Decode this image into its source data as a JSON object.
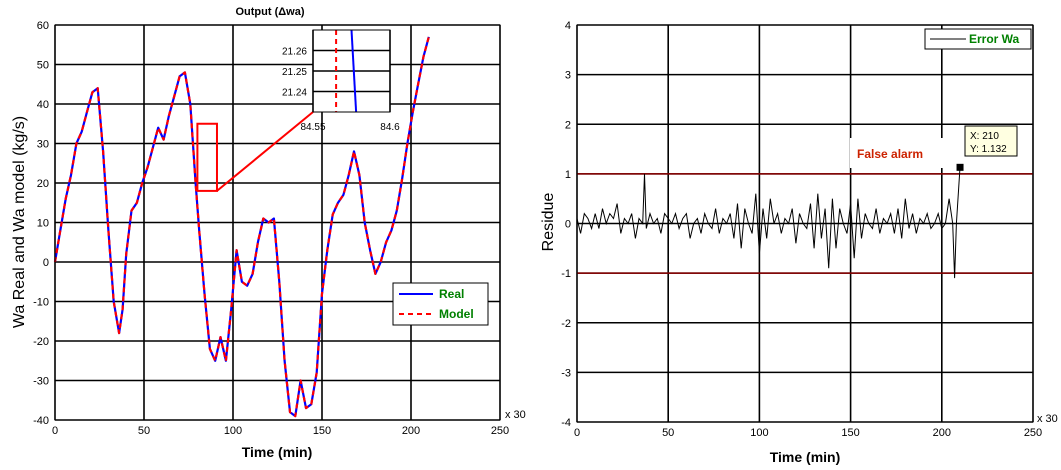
{
  "chart_data": [
    {
      "type": "line",
      "title": "Output (Δwa)",
      "xlabel": "Time (min)",
      "ylabel": "Wa Real and Wa model (kg/s)",
      "x_multiplier": "x 30",
      "xlim": [
        0,
        250
      ],
      "ylim": [
        -40,
        60
      ],
      "xticks": [
        0,
        50,
        100,
        150,
        200,
        250
      ],
      "yticks": [
        -40,
        -30,
        -20,
        -10,
        0,
        10,
        20,
        30,
        40,
        50,
        60
      ],
      "grid": true,
      "legend_position": "bottom-right",
      "x": [
        0,
        3,
        6,
        9,
        12,
        15,
        18,
        21,
        24,
        27,
        30,
        33,
        36,
        38,
        40,
        43,
        46,
        49,
        52,
        55,
        58,
        61,
        64,
        67,
        70,
        73,
        76,
        79,
        81,
        84,
        87,
        90,
        93,
        96,
        99,
        102,
        105,
        108,
        111,
        114,
        117,
        120,
        123,
        126,
        129,
        132,
        135,
        138,
        141,
        144,
        147,
        150,
        153,
        156,
        159,
        162,
        165,
        168,
        171,
        174,
        177,
        180,
        183,
        186,
        189,
        192,
        195,
        198,
        201,
        204,
        207,
        210
      ],
      "series": [
        {
          "name": "Real",
          "color": "#0000ff",
          "style": "solid",
          "values": [
            0,
            8,
            16,
            22,
            30,
            33,
            38,
            43,
            44,
            28,
            8,
            -10,
            -18,
            -12,
            2,
            13,
            15,
            20,
            24,
            29,
            34,
            31,
            37,
            42,
            47,
            48,
            40,
            20,
            8,
            -8,
            -22,
            -25,
            -19,
            -25,
            -12,
            3,
            -5,
            -6,
            -3,
            5,
            11,
            10,
            11,
            -5,
            -25,
            -38,
            -39,
            -30,
            -37,
            -36,
            -28,
            -8,
            3,
            12,
            15,
            17,
            22,
            28,
            22,
            10,
            3,
            -3,
            0,
            5,
            8,
            13,
            21,
            30,
            38,
            45,
            52,
            57
          ]
        },
        {
          "name": "Model",
          "color": "#ff0000",
          "style": "dashed",
          "values": [
            0,
            8,
            16,
            22,
            30,
            33,
            38,
            43,
            44,
            28,
            8,
            -10,
            -18,
            -12,
            2,
            13,
            15,
            20,
            24,
            29,
            34,
            31,
            37,
            42,
            47,
            48,
            40,
            20,
            8,
            -8,
            -22,
            -25,
            -19,
            -25,
            -12,
            3,
            -5,
            -6,
            -3,
            5,
            11,
            10,
            11,
            -5,
            -25,
            -38,
            -39,
            -30,
            -37,
            -36,
            -28,
            -8,
            3,
            12,
            15,
            17,
            22,
            28,
            22,
            10,
            3,
            -3,
            0,
            5,
            8,
            13,
            21,
            30,
            38,
            45,
            52,
            57
          ]
        }
      ],
      "highlight_box": {
        "x": [
          80,
          91
        ],
        "y": [
          18,
          35
        ],
        "color": "#ff0000"
      },
      "inset": {
        "xlim": [
          84.55,
          84.6
        ],
        "ylim": [
          21.23,
          21.27
        ],
        "xticks": [
          84.55,
          84.6
        ],
        "yticks": [
          21.24,
          21.25,
          21.26
        ],
        "real_line": {
          "x": [
            84.575,
            84.578
          ],
          "y": [
            21.27,
            21.23
          ]
        },
        "model_line": {
          "x": [
            84.565,
            84.565
          ],
          "y": [
            21.27,
            21.23
          ]
        }
      }
    },
    {
      "type": "line",
      "title": "",
      "xlabel": "Time (min)",
      "ylabel": "Residue",
      "x_multiplier": "x 30",
      "xlim": [
        0,
        250
      ],
      "ylim": [
        -4,
        4
      ],
      "xticks": [
        0,
        50,
        100,
        150,
        200,
        250
      ],
      "yticks": [
        -4,
        -3,
        -2,
        -1,
        0,
        1,
        2,
        3,
        4
      ],
      "grid": true,
      "legend_position": "top-right",
      "threshold_lines": [
        1,
        -1
      ],
      "threshold_color": "#8b0000",
      "series": [
        {
          "name": "Error Wa",
          "color": "#000000",
          "style": "solid",
          "x": [
            0,
            2,
            4,
            6,
            8,
            10,
            12,
            14,
            16,
            18,
            20,
            22,
            24,
            26,
            28,
            30,
            32,
            34,
            36,
            37,
            38,
            40,
            42,
            44,
            46,
            48,
            50,
            52,
            54,
            56,
            58,
            60,
            62,
            64,
            66,
            68,
            70,
            72,
            74,
            76,
            78,
            80,
            82,
            84,
            86,
            88,
            90,
            92,
            94,
            96,
            98,
            100,
            102,
            104,
            106,
            108,
            110,
            112,
            114,
            116,
            118,
            120,
            122,
            124,
            126,
            128,
            130,
            132,
            134,
            136,
            138,
            140,
            142,
            144,
            146,
            148,
            150,
            152,
            154,
            156,
            158,
            160,
            162,
            164,
            166,
            168,
            170,
            172,
            174,
            176,
            178,
            180,
            182,
            184,
            186,
            188,
            190,
            192,
            194,
            196,
            198,
            200,
            202,
            204,
            206,
            207,
            208,
            210
          ],
          "values": [
            0.1,
            -0.2,
            0.2,
            0.1,
            -0.1,
            0.2,
            -0.1,
            0.3,
            0.0,
            0.2,
            0.1,
            0.4,
            -0.2,
            0.1,
            0.0,
            0.2,
            -0.3,
            0.1,
            0.0,
            1.0,
            -0.1,
            0.2,
            0.0,
            0.1,
            -0.2,
            0.2,
            0.1,
            0.0,
            0.2,
            -0.1,
            0.1,
            0.2,
            -0.3,
            0.0,
            0.1,
            -0.2,
            0.2,
            0.0,
            -0.1,
            0.3,
            -0.2,
            0.1,
            0.0,
            0.2,
            -0.3,
            0.4,
            -0.5,
            0.3,
            0.0,
            -0.2,
            0.6,
            -0.6,
            0.3,
            -0.3,
            0.5,
            0.0,
            0.2,
            -0.2,
            0.1,
            0.0,
            0.3,
            -0.4,
            0.2,
            0.0,
            -0.1,
            0.4,
            -0.5,
            0.6,
            -0.3,
            0.3,
            -0.9,
            0.5,
            -0.5,
            0.3,
            0.0,
            -0.2,
            0.4,
            -0.7,
            0.5,
            -0.3,
            0.2,
            0.0,
            -0.1,
            0.3,
            -0.2,
            0.1,
            0.0,
            0.2,
            -0.2,
            0.3,
            -0.3,
            0.5,
            -0.1,
            0.2,
            -0.2,
            0.1,
            0.0,
            0.2,
            -0.1,
            0.0,
            0.2,
            -0.1,
            0.0,
            0.5,
            0.0,
            -1.1,
            0.0,
            1.132
          ]
        }
      ],
      "annotation_label": "False alarm",
      "annotation_color": "#cc2200",
      "datatip": {
        "x_label": "X: 210",
        "y_label": "Y: 1.132",
        "x": 210,
        "y": 1.132
      }
    }
  ]
}
